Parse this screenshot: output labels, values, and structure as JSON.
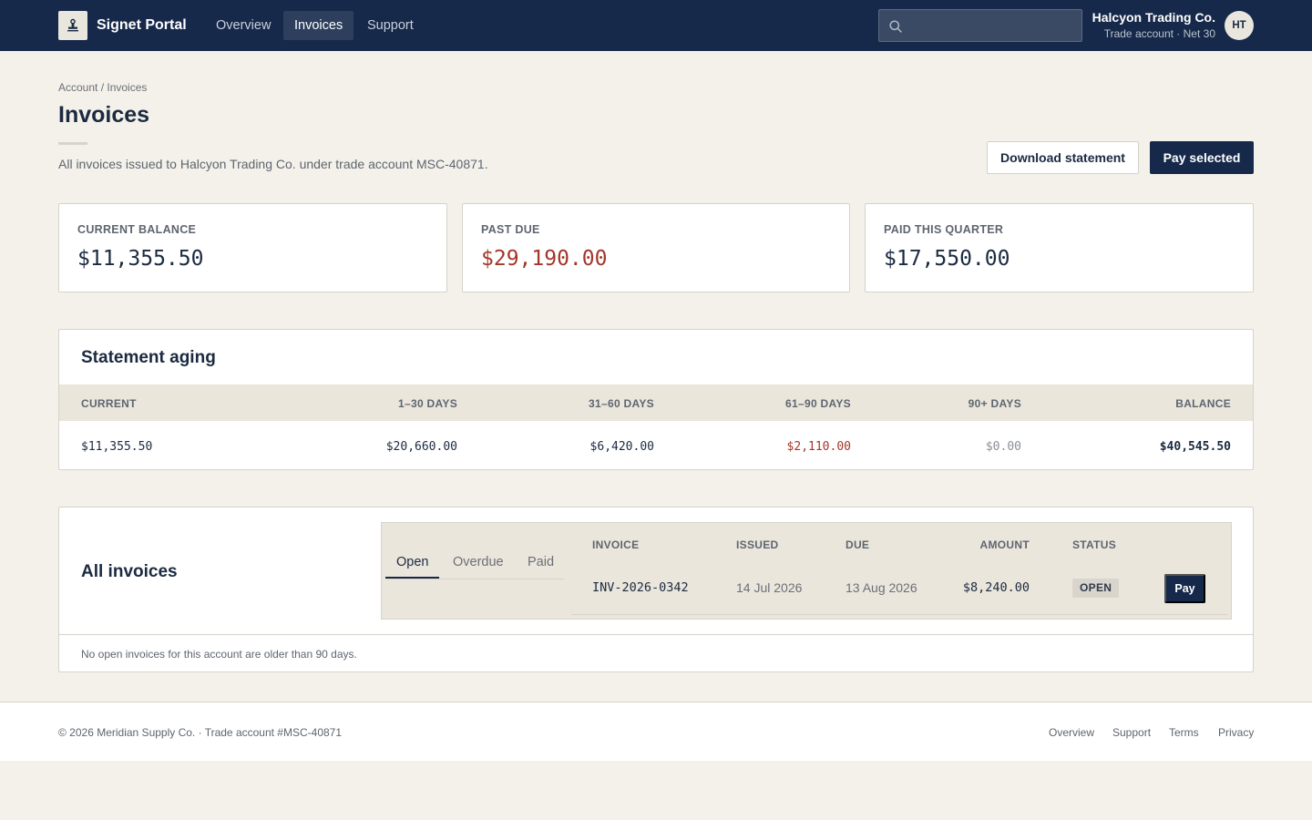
{
  "header": {
    "logo_icon": "stamp-icon",
    "brand": "Signet Portal",
    "nav": [
      {
        "label": "Overview",
        "active": false
      },
      {
        "label": "Invoices",
        "active": true
      },
      {
        "label": "Support",
        "active": false
      }
    ],
    "search": {
      "icon": "search-icon",
      "placeholder": "",
      "value": ""
    },
    "user": {
      "name": "Halcyon Trading Co.",
      "subtitle": "Trade account · Net 30",
      "initials": "HT"
    }
  },
  "page": {
    "breadcrumb": "Account / Invoices",
    "title": "Invoices",
    "description": "All invoices issued to Halcyon Trading Co. under trade account MSC-40871.",
    "actions": {
      "download": "Download statement",
      "pay_selected": "Pay selected"
    }
  },
  "kpis": [
    {
      "label": "CURRENT BALANCE",
      "value": "$11,355.50"
    },
    {
      "label": "PAST DUE",
      "value": "$29,190.00"
    },
    {
      "label": "PAID THIS QUARTER",
      "value": "$17,550.00"
    }
  ],
  "aging": {
    "title": "Statement aging",
    "headers": [
      "CURRENT",
      "1–30 DAYS",
      "31–60 DAYS",
      "61–90 DAYS",
      "90+ DAYS",
      "BALANCE"
    ],
    "values": [
      "$11,355.50",
      "$20,660.00",
      "$6,420.00",
      "$2,110.00",
      "$0.00",
      "$40,545.50"
    ]
  },
  "invoices": {
    "title": "All invoices",
    "tabs": [
      "Open",
      "Overdue",
      "Paid"
    ],
    "active_tab": "Open",
    "columns": [
      "INVOICE",
      "ISSUED",
      "DUE",
      "AMOUNT",
      "STATUS"
    ],
    "rows": [
      {
        "invoice": "INV-2026-0342",
        "issued": "14 Jul 2026",
        "due": "13 Aug 2026",
        "amount": "$8,240.00",
        "status": "OPEN",
        "action": "Pay"
      }
    ],
    "note": "No open invoices for this account are older than 90 days."
  },
  "footer": {
    "copyright": "© 2026 Meridian Supply Co. · Trade account #MSC-40871",
    "links": [
      "Overview",
      "Support",
      "Terms",
      "Privacy"
    ]
  },
  "colors": {
    "navy": "#16294a",
    "background": "#f4f1ea",
    "past_due_red": "#a3362b",
    "table_header": "#ebe6dc"
  }
}
